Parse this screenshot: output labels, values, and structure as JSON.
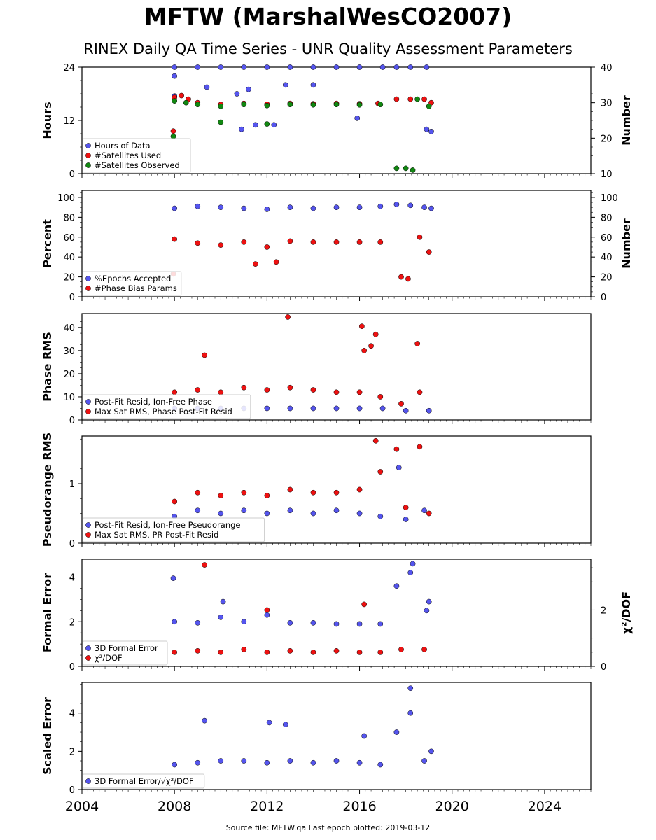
{
  "title": "MFTW (MarshalWesCO2007)",
  "subtitle": "RINEX Daily QA Time Series - UNR Quality Assessment Parameters",
  "footer": "Source file: MFTW.qa Last epoch plotted: 2019-03-12",
  "x_axis": {
    "min": 2004,
    "max": 2026,
    "ticks": [
      2004,
      2008,
      2012,
      2016,
      2020,
      2024
    ]
  },
  "colors": {
    "blue": "#5555ee",
    "red": "#ee1111",
    "green": "#118811"
  },
  "chart_data": [
    {
      "type": "scatter",
      "ylabel": "Hours",
      "ylabel_right": "Number",
      "ylim": [
        0,
        24
      ],
      "yticks": [
        0,
        12,
        24
      ],
      "ylim_right": [
        10,
        40
      ],
      "yticks_right": [
        10,
        20,
        30,
        40
      ],
      "legend_position": "lower-left",
      "series": [
        {
          "name": "Hours of Data",
          "color": "blue",
          "axis": "left",
          "points": [
            [
              2008.0,
              24
            ],
            [
              2009.0,
              24
            ],
            [
              2010.0,
              24
            ],
            [
              2011.0,
              24
            ],
            [
              2012.0,
              24
            ],
            [
              2013.0,
              24
            ],
            [
              2014.0,
              24
            ],
            [
              2015.0,
              24
            ],
            [
              2016.0,
              24
            ],
            [
              2017.0,
              24
            ],
            [
              2017.6,
              24
            ],
            [
              2018.2,
              24
            ],
            [
              2018.9,
              24
            ],
            [
              2008.0,
              22
            ],
            [
              2009.4,
              19.5
            ],
            [
              2010.7,
              18
            ],
            [
              2011.2,
              19
            ],
            [
              2012.3,
              11
            ],
            [
              2012.8,
              20
            ],
            [
              2014.0,
              20
            ],
            [
              2015.9,
              12.5
            ],
            [
              2010.9,
              10
            ],
            [
              2011.5,
              11
            ],
            [
              2018.9,
              10
            ],
            [
              2019.1,
              9.5
            ],
            [
              2008.0,
              17.5
            ]
          ]
        },
        {
          "name": "#Satellites Used",
          "color": "red",
          "axis": "right",
          "points": [
            [
              2008.0,
              31.5
            ],
            [
              2008.3,
              32
            ],
            [
              2008.6,
              31
            ],
            [
              2009.0,
              30
            ],
            [
              2010.0,
              29.5
            ],
            [
              2011.0,
              29.8
            ],
            [
              2012.0,
              29.6
            ],
            [
              2013.0,
              29.8
            ],
            [
              2014.0,
              29.7
            ],
            [
              2015.0,
              29.8
            ],
            [
              2016.0,
              29.7
            ],
            [
              2016.8,
              29.8
            ],
            [
              2017.6,
              31
            ],
            [
              2018.2,
              31
            ],
            [
              2018.8,
              31
            ],
            [
              2019.1,
              30
            ],
            [
              2007.95,
              22
            ]
          ]
        },
        {
          "name": "#Satellites Observed",
          "color": "green",
          "axis": "right",
          "points": [
            [
              2008.0,
              30.5
            ],
            [
              2008.5,
              30
            ],
            [
              2009.0,
              29.5
            ],
            [
              2010.0,
              29
            ],
            [
              2011.0,
              29.5
            ],
            [
              2012.0,
              29.2
            ],
            [
              2013.0,
              29.5
            ],
            [
              2014.0,
              29.4
            ],
            [
              2015.0,
              29.5
            ],
            [
              2016.0,
              29.4
            ],
            [
              2016.9,
              29.5
            ],
            [
              2018.5,
              31
            ],
            [
              2019.0,
              29
            ],
            [
              2017.6,
              11.5
            ],
            [
              2018.0,
              11.5
            ],
            [
              2018.3,
              11
            ],
            [
              2010.0,
              24.5
            ],
            [
              2012.0,
              24
            ],
            [
              2007.95,
              20.5
            ]
          ]
        }
      ]
    },
    {
      "type": "scatter",
      "ylabel": "Percent",
      "ylabel_right": "Number",
      "ylim": [
        0,
        107
      ],
      "yticks": [
        0,
        20,
        40,
        60,
        80,
        100
      ],
      "ylim_right": [
        0,
        107
      ],
      "yticks_right": [
        0,
        20,
        40,
        60,
        80,
        100
      ],
      "legend_position": "lower-left",
      "series": [
        {
          "name": "%Epochs Accepted",
          "color": "blue",
          "axis": "left",
          "points": [
            [
              2008.0,
              89
            ],
            [
              2009.0,
              91
            ],
            [
              2010.0,
              90
            ],
            [
              2011.0,
              89
            ],
            [
              2012.0,
              88
            ],
            [
              2013.0,
              90
            ],
            [
              2014.0,
              89
            ],
            [
              2015.0,
              90
            ],
            [
              2016.0,
              90
            ],
            [
              2016.9,
              91
            ],
            [
              2017.6,
              93
            ],
            [
              2018.2,
              92
            ],
            [
              2018.8,
              90
            ],
            [
              2019.1,
              89
            ]
          ]
        },
        {
          "name": "#Phase Bias Params",
          "color": "red",
          "axis": "left",
          "points": [
            [
              2008.0,
              58
            ],
            [
              2009.0,
              54
            ],
            [
              2010.0,
              52
            ],
            [
              2011.0,
              55
            ],
            [
              2012.0,
              50
            ],
            [
              2013.0,
              56
            ],
            [
              2014.0,
              55
            ],
            [
              2015.0,
              55
            ],
            [
              2016.0,
              55
            ],
            [
              2016.9,
              55
            ],
            [
              2017.8,
              20
            ],
            [
              2018.1,
              18
            ],
            [
              2018.6,
              60
            ],
            [
              2019.0,
              45
            ],
            [
              2007.95,
              23
            ],
            [
              2011.5,
              33
            ],
            [
              2012.4,
              35
            ]
          ]
        }
      ]
    },
    {
      "type": "scatter",
      "ylabel": "Phase RMS",
      "ylim": [
        0,
        46
      ],
      "yticks": [
        0,
        10,
        20,
        30,
        40
      ],
      "legend_position": "lower-left",
      "series": [
        {
          "name": "Post-Fit Resid, Ion-Free Phase",
          "color": "blue",
          "axis": "left",
          "points": [
            [
              2008.0,
              5
            ],
            [
              2009.0,
              5
            ],
            [
              2010.0,
              5
            ],
            [
              2011.0,
              5
            ],
            [
              2012.0,
              5
            ],
            [
              2013.0,
              5
            ],
            [
              2014.0,
              5
            ],
            [
              2015.0,
              5
            ],
            [
              2016.0,
              5
            ],
            [
              2017.0,
              5
            ],
            [
              2018.0,
              4
            ],
            [
              2019.0,
              4
            ]
          ]
        },
        {
          "name": "Max Sat RMS, Phase Post-Fit Resid",
          "color": "red",
          "axis": "left",
          "points": [
            [
              2008.0,
              12
            ],
            [
              2009.0,
              13
            ],
            [
              2010.0,
              12
            ],
            [
              2011.0,
              14
            ],
            [
              2012.0,
              13
            ],
            [
              2013.0,
              14
            ],
            [
              2014.0,
              13
            ],
            [
              2015.0,
              12
            ],
            [
              2016.0,
              12
            ],
            [
              2016.9,
              10
            ],
            [
              2017.8,
              7
            ],
            [
              2018.6,
              12
            ],
            [
              2012.9,
              44.5
            ],
            [
              2016.1,
              40.5
            ],
            [
              2016.7,
              37
            ],
            [
              2016.2,
              30
            ],
            [
              2016.5,
              32
            ],
            [
              2018.5,
              33
            ],
            [
              2009.3,
              28
            ]
          ]
        }
      ]
    },
    {
      "type": "scatter",
      "ylabel": "Pseudorange RMS",
      "ylim": [
        0,
        1.8
      ],
      "yticks": [
        0,
        1
      ],
      "legend_position": "lower-left",
      "series": [
        {
          "name": "Post-Fit Resid, Ion-Free Pseudorange",
          "color": "blue",
          "axis": "left",
          "points": [
            [
              2008.0,
              0.45
            ],
            [
              2009.0,
              0.55
            ],
            [
              2010.0,
              0.5
            ],
            [
              2011.0,
              0.55
            ],
            [
              2012.0,
              0.5
            ],
            [
              2013.0,
              0.55
            ],
            [
              2014.0,
              0.5
            ],
            [
              2015.0,
              0.55
            ],
            [
              2016.0,
              0.5
            ],
            [
              2016.9,
              0.45
            ],
            [
              2017.7,
              1.27
            ],
            [
              2018.0,
              0.4
            ],
            [
              2018.8,
              0.55
            ]
          ]
        },
        {
          "name": "Max Sat RMS, PR Post-Fit Resid",
          "color": "red",
          "axis": "left",
          "points": [
            [
              2008.0,
              0.7
            ],
            [
              2009.0,
              0.85
            ],
            [
              2010.0,
              0.8
            ],
            [
              2011.0,
              0.85
            ],
            [
              2012.0,
              0.8
            ],
            [
              2013.0,
              0.9
            ],
            [
              2014.0,
              0.85
            ],
            [
              2015.0,
              0.85
            ],
            [
              2016.0,
              0.9
            ],
            [
              2016.7,
              1.72
            ],
            [
              2016.9,
              1.2
            ],
            [
              2017.6,
              1.58
            ],
            [
              2018.6,
              1.62
            ],
            [
              2018.0,
              0.6
            ],
            [
              2019.0,
              0.5
            ]
          ]
        }
      ]
    },
    {
      "type": "scatter",
      "ylabel": "Formal Error",
      "ylabel_right": "χ²/DOF",
      "ylim": [
        0,
        4.8
      ],
      "yticks": [
        0,
        2,
        4
      ],
      "ylim_right": [
        0,
        3.8
      ],
      "yticks_right": [
        0,
        2
      ],
      "legend_position": "lower-left",
      "series": [
        {
          "name": "3D Formal Error",
          "color": "blue",
          "axis": "left",
          "points": [
            [
              2008.0,
              2.0
            ],
            [
              2009.0,
              1.95
            ],
            [
              2010.0,
              2.2
            ],
            [
              2011.0,
              2.0
            ],
            [
              2012.0,
              2.3
            ],
            [
              2013.0,
              1.95
            ],
            [
              2014.0,
              1.95
            ],
            [
              2015.0,
              1.9
            ],
            [
              2016.0,
              1.9
            ],
            [
              2016.9,
              1.9
            ],
            [
              2017.6,
              3.6
            ],
            [
              2018.2,
              4.2
            ],
            [
              2018.3,
              4.6
            ],
            [
              2018.9,
              2.5
            ],
            [
              2019.0,
              2.9
            ],
            [
              2007.95,
              3.95
            ],
            [
              2010.1,
              2.9
            ]
          ]
        },
        {
          "name": "χ²/DOF",
          "color": "red",
          "axis": "right",
          "points": [
            [
              2008.0,
              0.5
            ],
            [
              2009.0,
              0.55
            ],
            [
              2010.0,
              0.5
            ],
            [
              2011.0,
              0.6
            ],
            [
              2012.0,
              0.5
            ],
            [
              2013.0,
              0.55
            ],
            [
              2014.0,
              0.5
            ],
            [
              2015.0,
              0.55
            ],
            [
              2016.0,
              0.5
            ],
            [
              2016.9,
              0.5
            ],
            [
              2017.8,
              0.6
            ],
            [
              2018.8,
              0.6
            ],
            [
              2009.3,
              3.6
            ],
            [
              2016.2,
              2.2
            ],
            [
              2012.0,
              2.0
            ]
          ]
        }
      ]
    },
    {
      "type": "scatter",
      "ylabel": "Scaled Error",
      "ylim": [
        0,
        5.6
      ],
      "yticks": [
        0,
        2,
        4
      ],
      "legend_position": "lower-left",
      "series": [
        {
          "name": "3D Formal Error/√χ²/DOF",
          "color": "blue",
          "axis": "left",
          "points": [
            [
              2008.0,
              1.3
            ],
            [
              2009.0,
              1.4
            ],
            [
              2010.0,
              1.5
            ],
            [
              2011.0,
              1.5
            ],
            [
              2012.0,
              1.4
            ],
            [
              2013.0,
              1.5
            ],
            [
              2014.0,
              1.4
            ],
            [
              2015.0,
              1.5
            ],
            [
              2016.0,
              1.4
            ],
            [
              2016.9,
              1.3
            ],
            [
              2017.6,
              3.0
            ],
            [
              2018.2,
              4.0
            ],
            [
              2018.2,
              5.3
            ],
            [
              2018.8,
              1.5
            ],
            [
              2019.1,
              2.0
            ],
            [
              2009.3,
              3.6
            ],
            [
              2012.1,
              3.5
            ],
            [
              2012.8,
              3.4
            ],
            [
              2016.2,
              2.8
            ]
          ]
        }
      ]
    }
  ]
}
